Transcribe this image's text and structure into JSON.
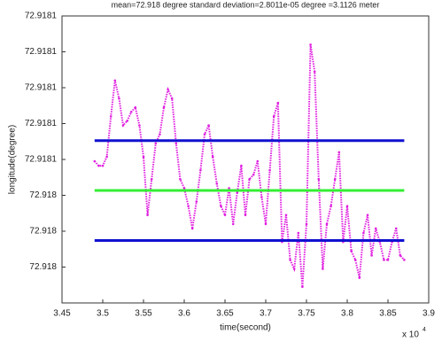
{
  "chart_data": {
    "type": "scatter",
    "title": "mean=72.918 degree    standard deviation=2.8011e-05 degree =3.1126 meter",
    "x_label": "time(second)",
    "y_label": "longitude(degree)",
    "x_multiplier": "x 10",
    "x_multiplier_exp": "4",
    "xlim": [
      3.45,
      3.9
    ],
    "xticks": [
      3.45,
      3.5,
      3.55,
      3.6,
      3.65,
      3.7,
      3.75,
      3.8,
      3.85,
      3.9
    ],
    "ylim": [
      72.91798,
      72.91814
    ],
    "yticks": [
      {
        "value": 72.91814,
        "label": "72.9181"
      },
      {
        "value": 72.91812,
        "label": "72.9181"
      },
      {
        "value": 72.9181,
        "label": "72.9181"
      },
      {
        "value": 72.91808,
        "label": "72.9181"
      },
      {
        "value": 72.91806,
        "label": "72.9181"
      },
      {
        "value": 72.91804,
        "label": "72.918"
      },
      {
        "value": 72.91802,
        "label": "72.918"
      },
      {
        "value": 72.918,
        "label": "72.918"
      }
    ],
    "hlines": [
      {
        "value": 72.9180705,
        "color": "#1010d0"
      },
      {
        "value": 72.9180427,
        "color": "#33ee33"
      },
      {
        "value": 72.9180148,
        "color": "#1010d0"
      }
    ],
    "series": [
      {
        "color": "#e020e0",
        "x": [
          3.49,
          3.495,
          3.5,
          3.505,
          3.51,
          3.515,
          3.52,
          3.525,
          3.53,
          3.535,
          3.54,
          3.545,
          3.55,
          3.555,
          3.56,
          3.565,
          3.57,
          3.575,
          3.58,
          3.585,
          3.59,
          3.595,
          3.6,
          3.605,
          3.61,
          3.615,
          3.62,
          3.625,
          3.63,
          3.635,
          3.64,
          3.645,
          3.65,
          3.655,
          3.66,
          3.665,
          3.67,
          3.675,
          3.68,
          3.685,
          3.69,
          3.695,
          3.7,
          3.705,
          3.71,
          3.715,
          3.72,
          3.725,
          3.73,
          3.735,
          3.74,
          3.745,
          3.75,
          3.755,
          3.76,
          3.765,
          3.77,
          3.775,
          3.78,
          3.785,
          3.79,
          3.795,
          3.8,
          3.805,
          3.81,
          3.815,
          3.82,
          3.825,
          3.83,
          3.835,
          3.84,
          3.845,
          3.85,
          3.855,
          3.86,
          3.865,
          3.87
        ],
        "values": [
          72.918059,
          72.9180565,
          72.9180565,
          72.9180615,
          72.918084,
          72.918104,
          72.918094,
          72.918079,
          72.9180815,
          72.9180865,
          72.918089,
          72.918079,
          72.9180615,
          72.918029,
          72.918049,
          72.918069,
          72.918074,
          72.918089,
          72.918099,
          72.918094,
          72.918069,
          72.918049,
          72.918044,
          72.918034,
          72.9180215,
          72.9180365,
          72.918054,
          72.918074,
          72.918079,
          72.9180615,
          72.9180465,
          72.918034,
          72.918029,
          72.918044,
          72.918024,
          72.9180415,
          72.9180565,
          72.918029,
          72.918049,
          72.9180515,
          72.918059,
          72.918039,
          72.918024,
          72.918054,
          72.918084,
          72.9180915,
          72.918014,
          72.918029,
          72.918004,
          72.917999,
          72.918019,
          72.917989,
          72.918024,
          72.918124,
          72.918109,
          72.918049,
          72.917999,
          72.918024,
          72.918034,
          72.918049,
          72.918064,
          72.918014,
          72.918034,
          72.918009,
          72.918004,
          72.917994,
          72.918019,
          72.918029,
          72.9180065,
          72.9180215,
          72.918014,
          72.918004,
          72.918004,
          72.918014,
          72.9180215,
          72.9180065,
          72.918004
        ]
      }
    ]
  }
}
